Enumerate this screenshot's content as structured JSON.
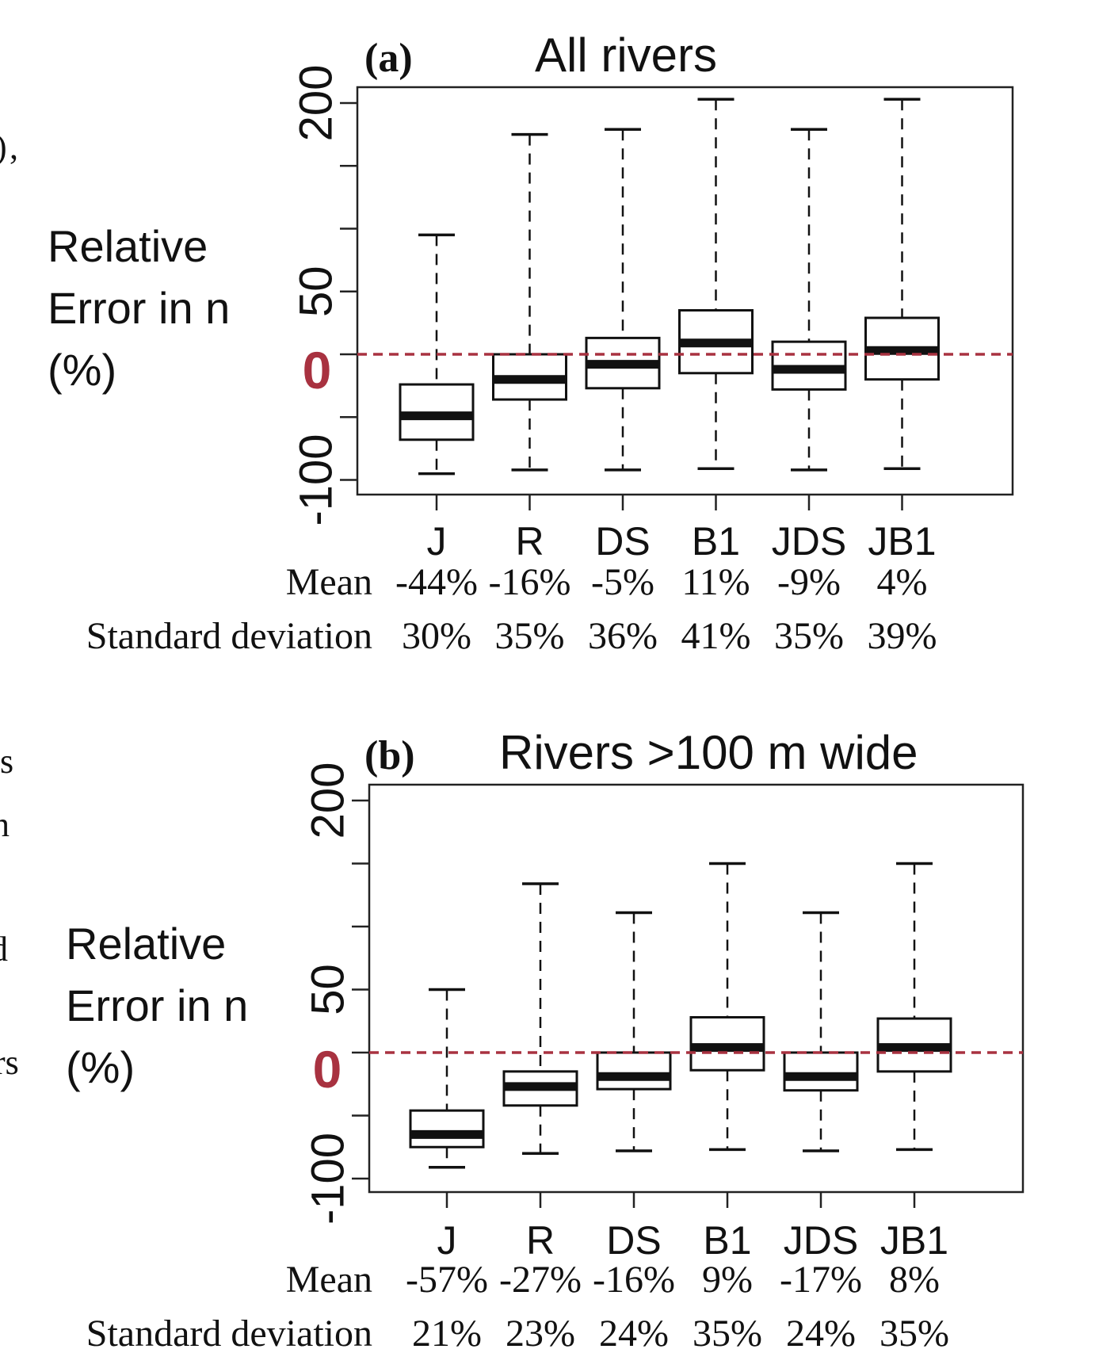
{
  "margin_text": [
    ")",
    ",",
    "us",
    "n",
    "d",
    "rs"
  ],
  "chart_data": [
    {
      "type": "box",
      "panel_label": "(a)",
      "title": "All rivers",
      "ylabel": "Relative Error in n (%)",
      "ylabel_lines": [
        "Relative",
        "Error in n",
        "(%)"
      ],
      "yticks": [
        200,
        50,
        0,
        -100
      ],
      "yticks_minor": [
        150,
        100,
        -50
      ],
      "ylim": [
        -110,
        210
      ],
      "zero_line": {
        "value": 0,
        "label": "0",
        "color": "#a83240"
      },
      "categories": [
        "J",
        "R",
        "DS",
        "B1",
        "JDS",
        "JB1"
      ],
      "boxes": [
        {
          "min": -95,
          "q1": -68,
          "median": -49,
          "q3": -24,
          "max": 95
        },
        {
          "min": -92,
          "q1": -36,
          "median": -20,
          "q3": 0,
          "max": 175
        },
        {
          "min": -92,
          "q1": -27,
          "median": -8,
          "q3": 13,
          "max": 179
        },
        {
          "min": -91,
          "q1": -15,
          "median": 9,
          "q3": 35,
          "max": 203
        },
        {
          "min": -92,
          "q1": -28,
          "median": -12,
          "q3": 10,
          "max": 179
        },
        {
          "min": -91,
          "q1": -20,
          "median": 3,
          "q3": 29,
          "max": 203
        }
      ],
      "stats_rows": [
        {
          "label": "Mean",
          "values": [
            "-44%",
            "-16%",
            "-5%",
            "11%",
            "-9%",
            "4%"
          ]
        },
        {
          "label": "Standard deviation",
          "values": [
            "30%",
            "35%",
            "36%",
            "41%",
            "35%",
            "39%"
          ]
        }
      ]
    },
    {
      "type": "box",
      "panel_label": "(b)",
      "title": "Rivers >100 m wide",
      "ylabel": "Relative Error in n (%)",
      "ylabel_lines": [
        "Relative",
        "Error in n",
        "(%)"
      ],
      "yticks": [
        200,
        50,
        0,
        -100
      ],
      "yticks_minor": [
        150,
        100,
        -50
      ],
      "ylim": [
        -110,
        210
      ],
      "zero_line": {
        "value": 0,
        "label": "0",
        "color": "#a83240"
      },
      "categories": [
        "J",
        "R",
        "DS",
        "B1",
        "JDS",
        "JB1"
      ],
      "boxes": [
        {
          "min": -91,
          "q1": -75,
          "median": -65,
          "q3": -46,
          "max": 50
        },
        {
          "min": -80,
          "q1": -42,
          "median": -27,
          "q3": -15,
          "max": 134
        },
        {
          "min": -78,
          "q1": -29,
          "median": -19,
          "q3": 0,
          "max": 111
        },
        {
          "min": -77,
          "q1": -14,
          "median": 4,
          "q3": 28,
          "max": 150
        },
        {
          "min": -78,
          "q1": -30,
          "median": -19,
          "q3": 0,
          "max": 111
        },
        {
          "min": -77,
          "q1": -15,
          "median": 4,
          "q3": 27,
          "max": 150
        }
      ],
      "stats_rows": [
        {
          "label": "Mean",
          "values": [
            "-57%",
            "-27%",
            "-16%",
            "9%",
            "-17%",
            "8%"
          ]
        },
        {
          "label": "Standard deviation",
          "values": [
            "21%",
            "23%",
            "24%",
            "35%",
            "24%",
            "35%"
          ]
        }
      ]
    }
  ]
}
